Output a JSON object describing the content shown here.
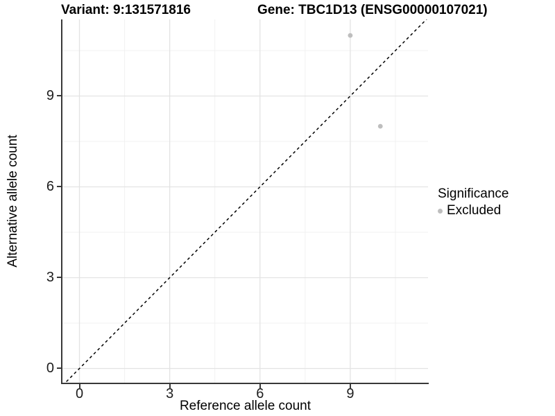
{
  "header": {
    "title_left": "Variant: 9:131571816",
    "title_right": "Gene: TBC1D13 (ENSG00000107021)"
  },
  "chart_data": {
    "type": "scatter",
    "xlabel": "Reference allele count",
    "ylabel": "Alternative allele count",
    "xlim": [
      -0.565,
      11.585
    ],
    "ylim": [
      -0.47,
      11.53
    ],
    "x_breaks": [
      0,
      3,
      6,
      9
    ],
    "y_breaks": [
      0,
      3,
      6,
      9
    ],
    "x_minor_breaks": [
      1.5,
      4.5,
      7.5,
      10.5
    ],
    "y_minor_breaks": [
      1.5,
      4.5,
      7.5,
      10.5
    ],
    "grid": "major+minor",
    "series": [
      {
        "name": "Excluded",
        "color": "#bebebe",
        "point_radius": 3.4,
        "points": [
          {
            "x": 9,
            "y": 11
          },
          {
            "x": 10,
            "y": 8
          }
        ]
      }
    ],
    "reference_line": {
      "type": "identity",
      "slope": 1,
      "intercept": 0,
      "linetype": "dashed",
      "color": "#000000"
    },
    "legend": {
      "title": "Significance",
      "position": "right",
      "items": [
        {
          "label": "Excluded",
          "color": "#bebebe"
        }
      ]
    },
    "colors": {
      "major_grid": "#e3e3e3",
      "minor_grid": "#f1f1f1",
      "axis_line": "#383838",
      "tick_text": "#1d1d1d"
    }
  }
}
